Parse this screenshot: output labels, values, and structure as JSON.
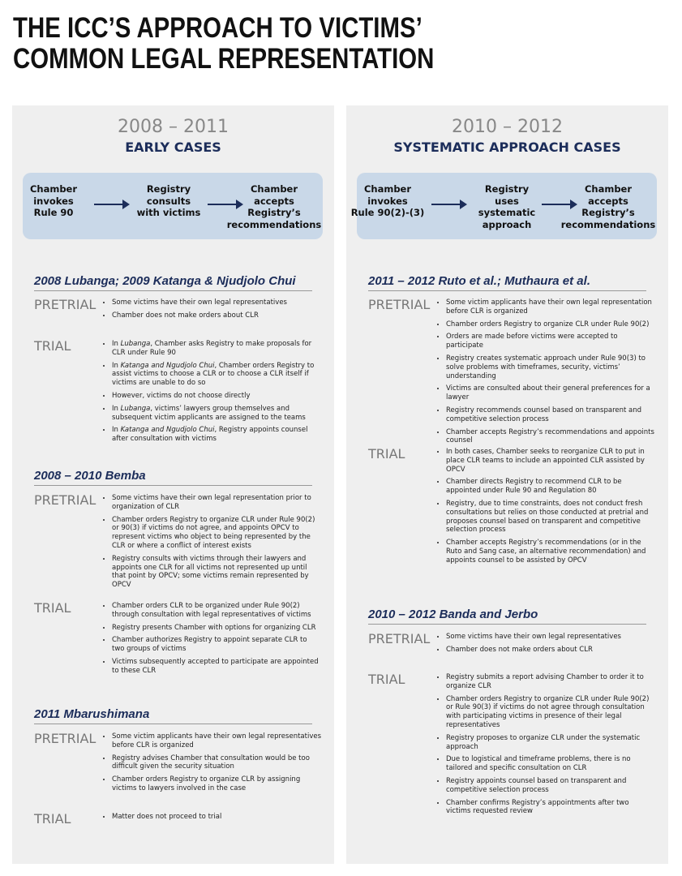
{
  "header": {
    "title": [
      "THE ICC’S APPROACH TO VICTIMS’",
      "COMMON LEGAL REPRESENTATION"
    ]
  },
  "columns": [
    {
      "years": "2008 – 2011",
      "subtitle": "EARLY CASES",
      "steps": [
        [
          "Chamber",
          "invokes",
          "Rule 90"
        ],
        [
          "Registry",
          "consults",
          "with victims"
        ],
        [
          "Chamber",
          "accepts",
          "Registry’s",
          "recommendations"
        ]
      ],
      "cases": [
        {
          "title": "2008 Lubanga; 2009 Katanga & Njudjolo Chui",
          "phases": [
            {
              "label": "PRETRIAL",
              "bullets": [
                [
                  "Some victims have their own legal representatives"
                ],
                [
                  "Chamber does not make orders about CLR"
                ]
              ]
            },
            {
              "label": "TRIAL",
              "bullets": [
                [
                  "In ",
                  {
                    "text": "Lubanga",
                    "italic": true
                  },
                  ", Chamber asks Registry to make proposals for CLR under Rule 90"
                ],
                [
                  "In ",
                  {
                    "text": "Katanga and Ngudjolo Chui",
                    "italic": true
                  },
                  ", Chamber orders Registry to assist victims to choose a CLR or to choose a CLR itself if victims are unable to do so"
                ],
                [
                  "However, victims do not choose directly"
                ],
                [
                  "In ",
                  {
                    "text": "Lubanga",
                    "italic": true
                  },
                  ", victims’ lawyers group themselves and subsequent victim applicants are assigned to the teams"
                ],
                [
                  "In ",
                  {
                    "text": "Katanga and Ngudjolo Chui",
                    "italic": true
                  },
                  ", Registry appoints counsel after consultation with victims"
                ]
              ]
            }
          ]
        },
        {
          "title": "2008 – 2010 Bemba",
          "phases": [
            {
              "label": "PRETRIAL",
              "bullets": [
                [
                  "Some victims have their own legal representation prior to organization of CLR"
                ],
                [
                  "Chamber orders Registry to organize CLR under Rule 90(2) or 90(3) if victims do not agree, and appoints OPCV to represent victims who object to being represented by the CLR or where a conflict of interest exists"
                ],
                [
                  "Registry consults with victims through their lawyers and appoints one CLR for all victims not represented up until that point by OPCV; some victims remain represented by OPCV"
                ]
              ]
            },
            {
              "label": "TRIAL",
              "bullets": [
                [
                  "Chamber orders CLR to be organized under Rule 90(2) through consultation with legal representatives of victims"
                ],
                [
                  "Registry presents Chamber with options for organizing CLR"
                ],
                [
                  "Chamber authorizes Registry to appoint separate CLR to two groups of victims"
                ],
                [
                  "Victims subsequently accepted to participate are appointed to these CLR"
                ]
              ]
            }
          ]
        },
        {
          "title": "2011 Mbarushimana",
          "phases": [
            {
              "label": "PRETRIAL",
              "bullets": [
                [
                  "Some victim applicants have their own legal representatives before CLR is organized"
                ],
                [
                  "Registry advises Chamber that consultation would be too difficult given the security situation"
                ],
                [
                  "Chamber orders Registry to organize CLR by assigning victims to lawyers involved in the case"
                ]
              ]
            },
            {
              "label": "TRIAL",
              "bullets": [
                [
                  "Matter does not proceed to trial"
                ]
              ]
            }
          ]
        }
      ]
    },
    {
      "years": "2010 – 2012",
      "subtitle": "SYSTEMATIC APPROACH CASES",
      "steps": [
        [
          "Chamber",
          "invokes",
          "Rule 90(2)-(3)"
        ],
        [
          "Registry",
          "uses",
          "systematic",
          "approach"
        ],
        [
          "Chamber",
          "accepts",
          "Registry’s",
          "recommendations"
        ]
      ],
      "cases": [
        {
          "title": "2011 – 2012 Ruto et al.; Muthaura et al.",
          "phases": [
            {
              "label": "PRETRIAL",
              "bullets": [
                [
                  "Some victim applicants have their own legal representation before CLR is organized"
                ],
                [
                  "Chamber orders Registry to organize CLR under Rule 90(2)"
                ],
                [
                  "Orders are made before victims were accepted to participate"
                ],
                [
                  "Registry creates systematic approach under Rule 90(3) to solve problems with timeframes, security, victims’ understanding"
                ],
                [
                  "Victims are consulted about their general preferences for a lawyer"
                ],
                [
                  "Registry recommends counsel based on transparent and competitive selection process"
                ],
                [
                  "Chamber accepts Registry’s recommendations and appoints counsel"
                ]
              ]
            },
            {
              "label": "TRIAL",
              "bullets": [
                [
                  "In both cases, Chamber seeks to reorganize CLR to put in place CLR teams to include an appointed CLR assisted by OPCV"
                ],
                [
                  "Chamber directs Registry to recommend CLR to be appointed under Rule 90 and Regulation 80"
                ],
                [
                  "Registry, due to time constraints, does not conduct fresh consultations but relies on those conducted at pretrial and proposes counsel based on transparent and competitive selection process"
                ],
                [
                  "Chamber accepts Registry’s recommendations (or in the Ruto and Sang case, an alternative recommendation) and appoints counsel to be assisted by OPCV"
                ]
              ]
            }
          ]
        },
        {
          "title": "2010 – 2012 Banda and Jerbo",
          "phases": [
            {
              "label": "PRETRIAL",
              "bullets": [
                [
                  "Some victims have their own legal representatives"
                ],
                [
                  "Chamber does not make orders about CLR"
                ]
              ]
            },
            {
              "label": "TRIAL",
              "bullets": [
                [
                  "Registry submits a report advising Chamber to order it to organize CLR"
                ],
                [
                  "Chamber orders Registry to organize CLR under Rule 90(2) or Rule 90(3) if victims do not agree through consultation with participating victims in presence of their legal representatives"
                ],
                [
                  "Registry proposes to organize CLR under the systematic approach"
                ],
                [
                  "Due to logistical and timeframe problems, there is no tailored and specific consultation on CLR"
                ],
                [
                  "Registry appoints counsel based on transparent and competitive selection process"
                ],
                [
                  "Chamber confirms Registry’s appointments after two victims requested review"
                ]
              ]
            }
          ]
        }
      ]
    }
  ]
}
